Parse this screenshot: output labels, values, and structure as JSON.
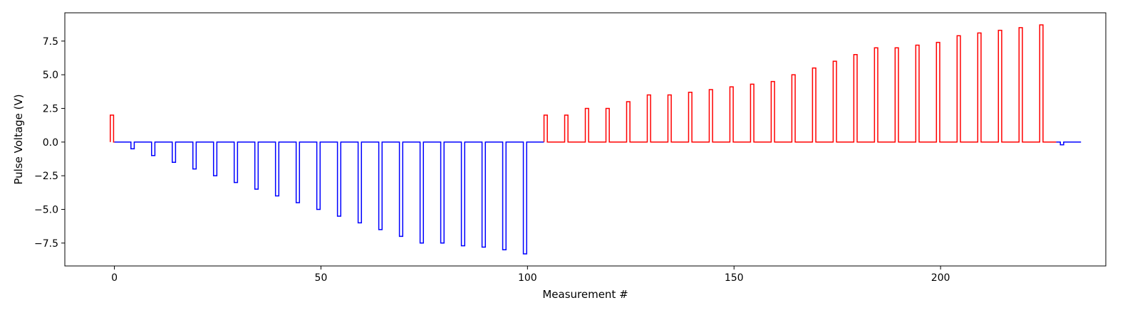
{
  "chart_data": {
    "type": "line",
    "title": "",
    "xlabel": "Measurement #",
    "ylabel": "Pulse Voltage (V)",
    "xlim": [
      -12,
      240
    ],
    "ylim": [
      -9.2,
      9.6
    ],
    "x_ticks": [
      0,
      50,
      100,
      150,
      200
    ],
    "y_ticks": [
      -7.5,
      -5.0,
      -2.5,
      0.0,
      2.5,
      5.0,
      7.5
    ],
    "x_tick_labels": [
      "0",
      "50",
      "100",
      "150",
      "200"
    ],
    "y_tick_labels": [
      "−7.5",
      "−5.0",
      "−2.5",
      "0.0",
      "2.5",
      "5.0",
      "7.5"
    ],
    "grid": false,
    "legend": "none",
    "pulse_width": 0.8,
    "series": [
      {
        "color": "#ff0000",
        "x_start": -1,
        "x_end": 0,
        "pulses": [
          {
            "x": -1,
            "value": 2.0
          }
        ]
      },
      {
        "color": "#0000ff",
        "x_start": 0,
        "x_end": 104,
        "pulses": [
          {
            "x": 4,
            "value": -0.5
          },
          {
            "x": 9,
            "value": -1.0
          },
          {
            "x": 14,
            "value": -1.5
          },
          {
            "x": 19,
            "value": -2.0
          },
          {
            "x": 24,
            "value": -2.5
          },
          {
            "x": 29,
            "value": -3.0
          },
          {
            "x": 34,
            "value": -3.5
          },
          {
            "x": 39,
            "value": -4.0
          },
          {
            "x": 44,
            "value": -4.5
          },
          {
            "x": 49,
            "value": -5.0
          },
          {
            "x": 54,
            "value": -5.5
          },
          {
            "x": 59,
            "value": -6.0
          },
          {
            "x": 64,
            "value": -6.5
          },
          {
            "x": 69,
            "value": -7.0
          },
          {
            "x": 74,
            "value": -7.5
          },
          {
            "x": 79,
            "value": -7.5
          },
          {
            "x": 84,
            "value": -7.7
          },
          {
            "x": 89,
            "value": -7.8
          },
          {
            "x": 94,
            "value": -8.0
          },
          {
            "x": 99,
            "value": -8.3
          }
        ]
      },
      {
        "color": "#ff0000",
        "x_start": 104,
        "x_end": 228,
        "pulses": [
          {
            "x": 104,
            "value": 2.0
          },
          {
            "x": 109,
            "value": 2.0
          },
          {
            "x": 114,
            "value": 2.5
          },
          {
            "x": 119,
            "value": 2.5
          },
          {
            "x": 124,
            "value": 3.0
          },
          {
            "x": 129,
            "value": 3.5
          },
          {
            "x": 134,
            "value": 3.5
          },
          {
            "x": 139,
            "value": 3.7
          },
          {
            "x": 144,
            "value": 3.9
          },
          {
            "x": 149,
            "value": 4.1
          },
          {
            "x": 154,
            "value": 4.3
          },
          {
            "x": 159,
            "value": 4.5
          },
          {
            "x": 164,
            "value": 5.0
          },
          {
            "x": 169,
            "value": 5.5
          },
          {
            "x": 174,
            "value": 6.0
          },
          {
            "x": 179,
            "value": 6.5
          },
          {
            "x": 184,
            "value": 7.0
          },
          {
            "x": 189,
            "value": 7.0
          },
          {
            "x": 194,
            "value": 7.2
          },
          {
            "x": 199,
            "value": 7.4
          },
          {
            "x": 204,
            "value": 7.9
          },
          {
            "x": 209,
            "value": 8.1
          },
          {
            "x": 214,
            "value": 8.3
          },
          {
            "x": 219,
            "value": 8.5
          },
          {
            "x": 224,
            "value": 8.7
          }
        ]
      },
      {
        "color": "#0000ff",
        "x_start": 228,
        "x_end": 234,
        "pulses": [
          {
            "x": 229,
            "value": -0.2
          }
        ]
      }
    ]
  }
}
